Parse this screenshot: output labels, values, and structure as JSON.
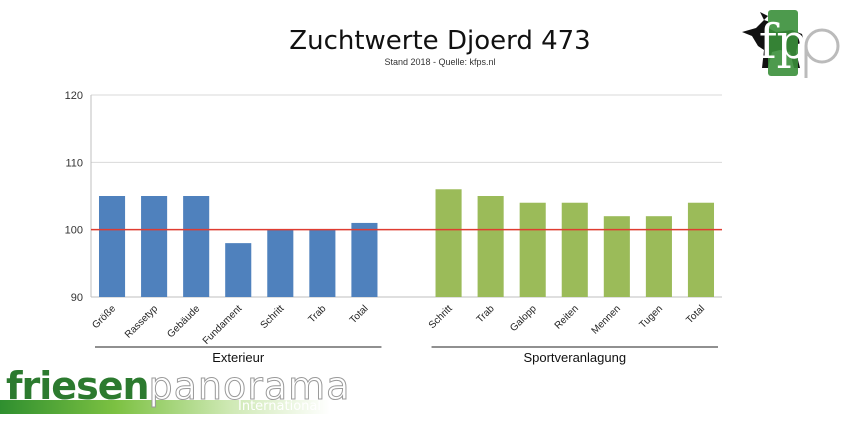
{
  "chart_data": {
    "type": "bar",
    "title": "Zuchtwerte Djoerd 473",
    "subtitle": "Stand 2018 - Quelle: kfps.nl",
    "ylim": [
      90,
      120
    ],
    "yticks": [
      90,
      100,
      110,
      120
    ],
    "reference_line": 100,
    "reference_color": "#e03c31",
    "grid": true,
    "groups": [
      {
        "name": "Exterieur",
        "color": "#4f81bd",
        "categories": [
          "Größe",
          "Rassetyp",
          "Gebäude",
          "Fundament",
          "Schritt",
          "Trab",
          "Total"
        ],
        "values": [
          105,
          105,
          105,
          98,
          100,
          100,
          101
        ]
      },
      {
        "name": "Sportveranlagung",
        "color": "#9bbb59",
        "categories": [
          "Schritt",
          "Trab",
          "Galopp",
          "Reiten",
          "Mennen",
          "Tugen",
          "Total"
        ],
        "values": [
          106,
          105,
          104,
          104,
          102,
          102,
          104
        ]
      }
    ]
  },
  "logo": {
    "text": "fp",
    "icon": "horse-icon"
  },
  "brand": {
    "part1": "friesen",
    "part2": "panorama",
    "sub": "International"
  }
}
